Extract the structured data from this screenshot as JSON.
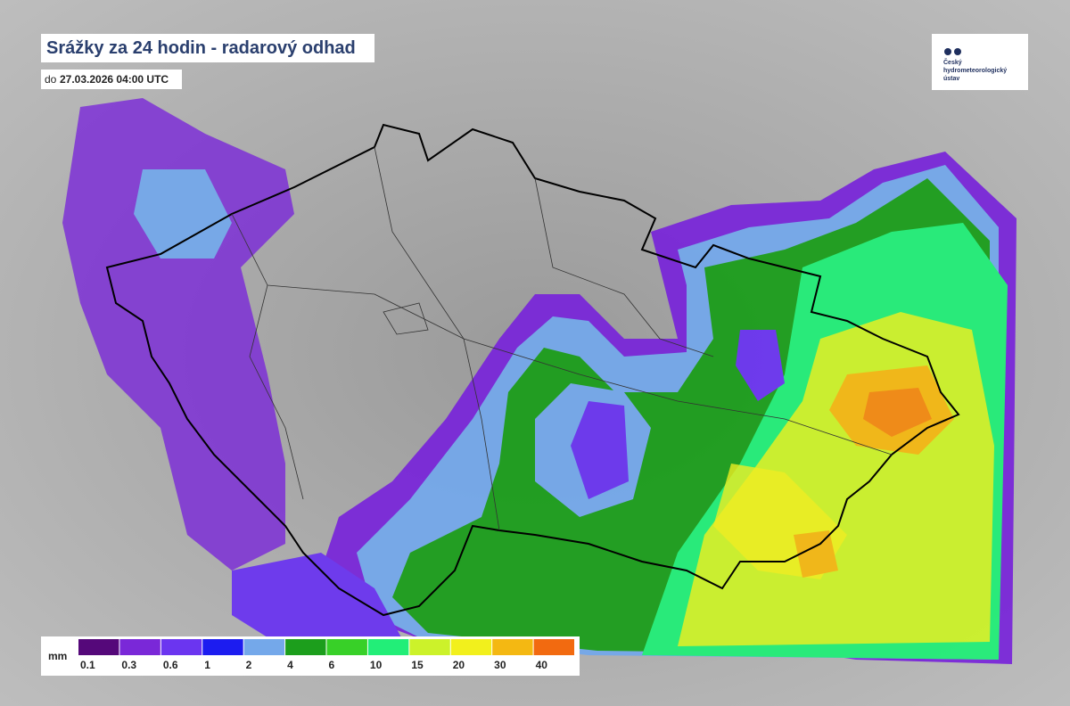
{
  "header": {
    "title": "Srážky za 24 hodin - radarový odhad",
    "date_prefix": "do",
    "date": "27.03.2026 04:00 UTC"
  },
  "logo": {
    "lines": [
      "Český",
      "hydrometeorologický",
      "ústav"
    ]
  },
  "legend": {
    "unit": "mm",
    "labels": [
      "0.1",
      "0.3",
      "0.6",
      "1",
      "2",
      "4",
      "6",
      "10",
      "15",
      "20",
      "30",
      "40"
    ],
    "colors": [
      "#55087a",
      "#7a28d8",
      "#6b35f0",
      "#1c1cf0",
      "#74a8ea",
      "#1c9e1c",
      "#38d028",
      "#22ee78",
      "#ccf22a",
      "#f2f01c",
      "#f4b812",
      "#f26a10"
    ]
  }
}
